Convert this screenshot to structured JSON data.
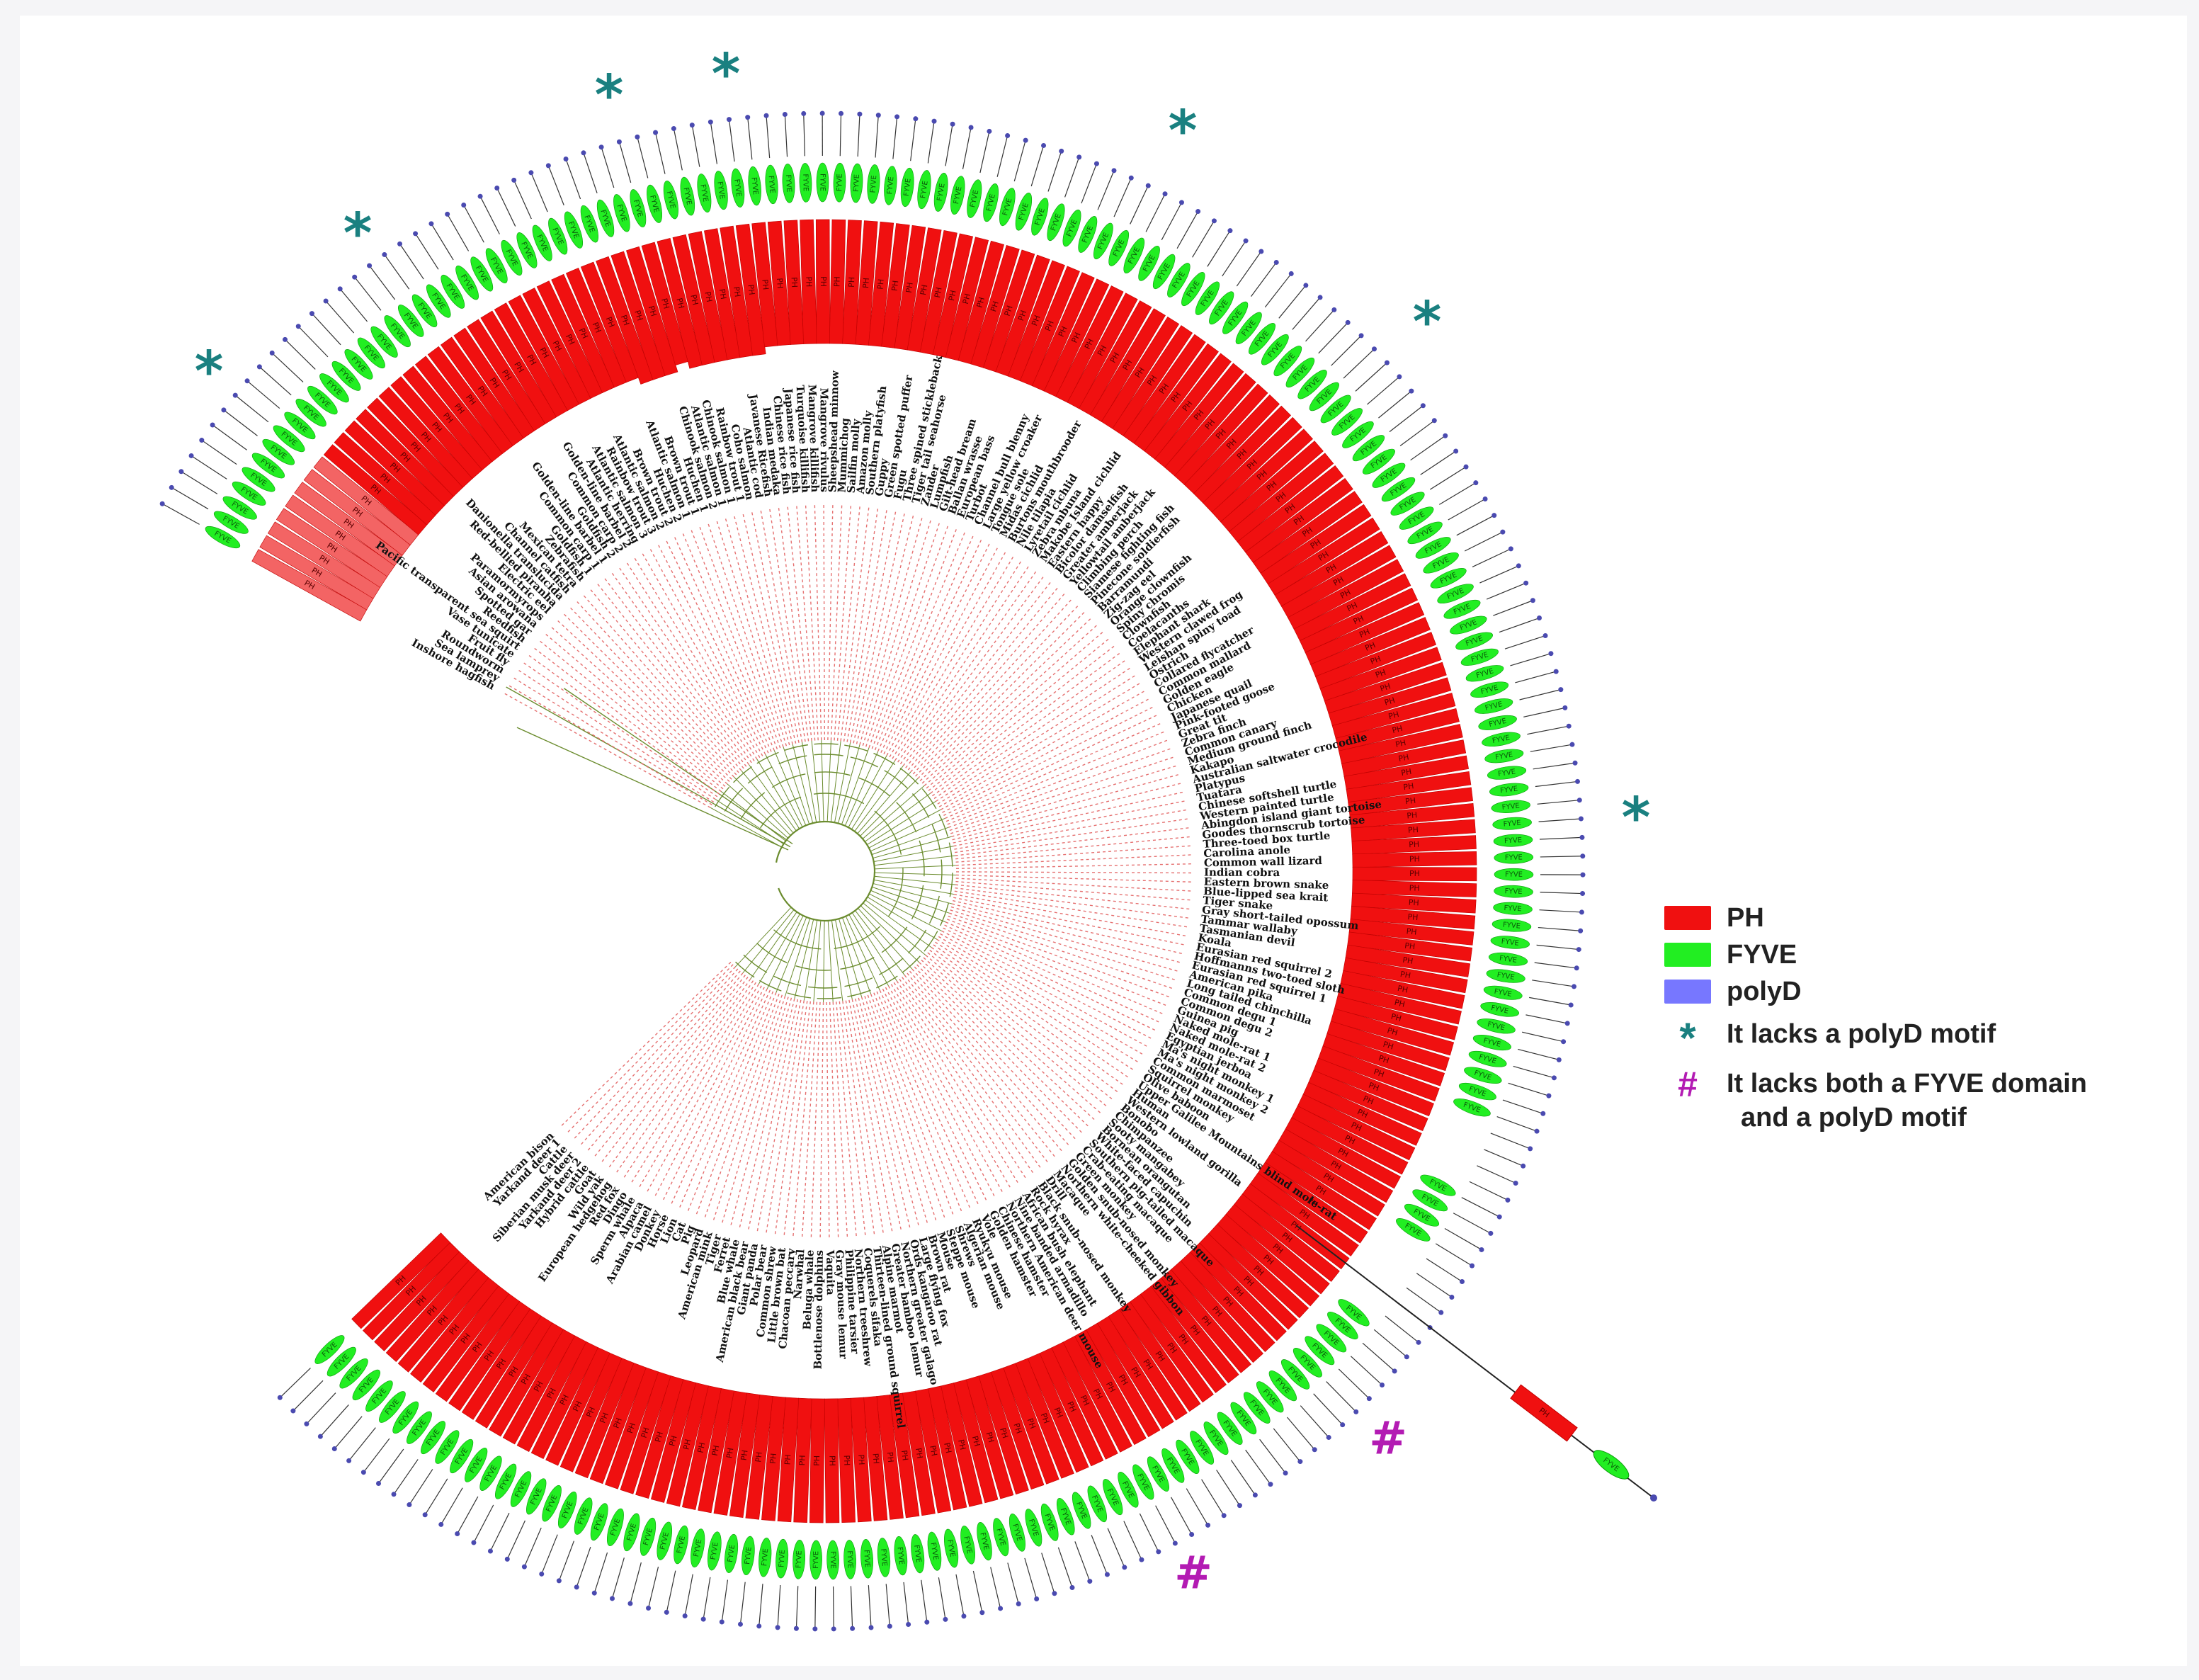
{
  "legend": {
    "items": [
      {
        "label": "PH",
        "color": "#f01010"
      },
      {
        "label": "FYVE",
        "color": "#22ee22"
      },
      {
        "label": "polyD",
        "color": "#7777ff"
      }
    ],
    "notes": [
      {
        "symbol": "*",
        "line1": "It lacks a polyD motif",
        "line2": "",
        "color": "#1a8080"
      },
      {
        "symbol": "#",
        "line1": "It lacks both a FYVE domain",
        "line2": "and a polyD motif",
        "color": "#b31bb3"
      }
    ]
  },
  "domain_labels": {
    "ph": "PH",
    "fyve": "FYVE"
  },
  "colors": {
    "ph": "#f01010",
    "fyve": "#22ee22",
    "polyd": "#4a4ab0",
    "branch": "#6b8c2e",
    "dash": "#e57070",
    "star": "#1a8080",
    "hash": "#b31bb3"
  },
  "species": [
    "Inshore hagfish",
    "Sea lamprey",
    "Roundworm",
    "Fruit fly",
    "Vase tunicate",
    "Pacific transparent sea squirt",
    "Reedfish",
    "Spotted gar",
    "Asian arowana",
    "Paramormyrops",
    "Electric eel",
    "Red-bellied piranha",
    "Danionella translucida",
    "Channel catfish",
    "Mexican tetra",
    "Zebrafish",
    "Goldfish 1",
    "Common carp 1",
    "Golden-line barbel 1",
    "Goldfish 2",
    "Common carp 2",
    "Golden-line barbel 2",
    "Atlantic herring",
    "Atlantic salmon 3",
    "Rainbow trout 3",
    "Atlantic salmon 2",
    "Brown trout 2",
    "Huchen 2",
    "Atlantic salmon 1",
    "Brown trout 1",
    "Huchen 1",
    "Chinook salmon 2",
    "Atlantic salmon 1",
    "Chinook salmon 1",
    "Rainbow trout 1",
    "Coho salmon",
    "Atlantic cod",
    "Javanese Ricefish",
    "Indian medaka",
    "Chinese rice fish",
    "Japanese rice fish",
    "Turquoise killifish",
    "Mangrove killifish",
    "Mangrove rivulus",
    "Sheepshead minnow",
    "Mummichog",
    "Sailfin molly",
    "Amazon molly",
    "Southern platyfish",
    "Guppy",
    "Green spotted puffer",
    "Fugu",
    "Three spined stickleback",
    "Tiger tail seahorse",
    "Zander",
    "Lumpfish",
    "Gilt-head bream",
    "Ballan wrasse",
    "European bass",
    "Turbot",
    "Channel bull blenny",
    "Large yellow croaker",
    "Tongue sole",
    "Midas cichlid",
    "Burtons mouthbrooder",
    "Nile tilapia",
    "Lyretail cichlid",
    "Zebra mbuna",
    "Makobe Island cichlid",
    "Eastern happy",
    "Bicolor damselfish",
    "Greater amberjack",
    "Yellowtail amberjack",
    "Climbing perch",
    "Siamese fighting fish",
    "Pinecone soldierfish",
    "Barramundi",
    "Zig-zag eel",
    "Orange clownfish",
    "Spiny chromis",
    "Clownfish",
    "Coelacanths",
    "Elephant shark",
    "Western clawed frog",
    "Leishan spiny toad",
    "Ostrich",
    "Collared flycatcher",
    "Common mallard",
    "Golden eagle",
    "Chicken",
    "Japanese quail",
    "Pink-footed goose",
    "Great tit",
    "Zebra finch",
    "Common canary",
    "Medium ground finch",
    "Kakapo",
    "Australian saltwater crocodile",
    "Platypus",
    "Tuatara",
    "Chinese softshell turtle",
    "Western painted turtle",
    "Abingdon island giant tortoise",
    "Goodes thornscrub tortoise",
    "Three-toed box turtle",
    "Carolina anole",
    "Common wall lizard",
    "Indian cobra",
    "Eastern brown snake",
    "Blue-lipped sea krait",
    "Tiger snake",
    "Gray short-tailed opossum",
    "Tammar wallaby",
    "Tasmanian devil",
    "Koala",
    "Eurasian red squirrel 2",
    "Hoffmanns two-toed sloth",
    "Eurasian red squirrel 1",
    "American pika",
    "Long tailed chinchilla",
    "Common degu 1",
    "Common degu 2",
    "Guinea pig",
    "Naked mole-rat 1",
    "Naked mole-rat 2",
    "Egyptian jerboa",
    "Ma's night monkey 1",
    "Ma's night monkey 2",
    "Common marmoset",
    "Squirrel monkey",
    "Olive baboon",
    "Upper Galilee Mountains blind mole-rat",
    "Human",
    "Western lowland gorilla",
    "Bonobo",
    "Chimpanzee",
    "Sooty mangabey",
    "Bornean orangutan",
    "White-faced capuchin",
    "Southern pig-tailed macaque",
    "Crab-eating macaque",
    "Green monkey",
    "Golden snub-nosed monkey",
    "Northern white-cheeked gibbon",
    "Macaque",
    "Drill",
    "Black snub-nosed monkey",
    "Rock hyrax",
    "African bush elephant",
    "Nine banded armadillo",
    "Northern American deer mouse",
    "Chinese hamster",
    "Golden hamster",
    "Vole",
    "Ryukyu mouse",
    "Algerian mouse",
    "Shrews",
    "Steppe mouse",
    "Mouse",
    "Brown rat",
    "Large flying fox",
    "Ords kangaroo rat",
    "Northern greater galago",
    "Greater bamboo lemur",
    "Alpine marmot",
    "Thirteen-lined ground squirrel",
    "Coquerels sifaka",
    "Northern treeshrew",
    "Philippine tarsier",
    "Gray mouse lemur",
    "Vaquita",
    "Bottlenose dolphins",
    "Beluga whale",
    "Narwhal",
    "Chacoan peccary",
    "Little brown bat",
    "Common shrew",
    "Polar bear",
    "Giant panda",
    "American black bear",
    "Blue whale",
    "Ferret",
    "Tiger",
    "American mink",
    "Leopard",
    "Pig",
    "Cat",
    "Lion",
    "Horse",
    "Donkey",
    "Arabian camel",
    "Alpaca",
    "Sperm whale",
    "Dingo",
    "Red fox",
    "European hedgehog",
    "Wild yak",
    "Goat",
    "Hybrid cattle",
    "Yarkand deer 2",
    "Siberian musk deer",
    "Cattle",
    "Yarkand deer 1",
    "American bison"
  ]
}
